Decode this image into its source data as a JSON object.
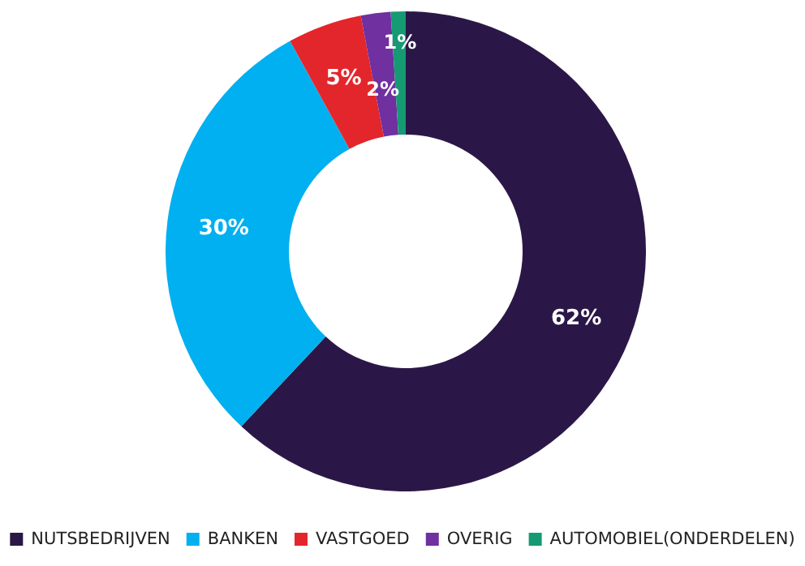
{
  "chart_data": {
    "type": "donut",
    "categories": [
      "NUTSBEDRIJVEN",
      "BANKEN",
      "VASTGOED",
      "OVERIG",
      "AUTOMOBIEL(ONDERDELEN)"
    ],
    "values": [
      62,
      30,
      5,
      2,
      1
    ],
    "colors": [
      "#2b1747",
      "#00b0f0",
      "#e3262b",
      "#7030a0",
      "#159a73"
    ],
    "value_labels": [
      "62%",
      "30%",
      "5%",
      "2%",
      "1%"
    ],
    "legend": "bottom"
  }
}
